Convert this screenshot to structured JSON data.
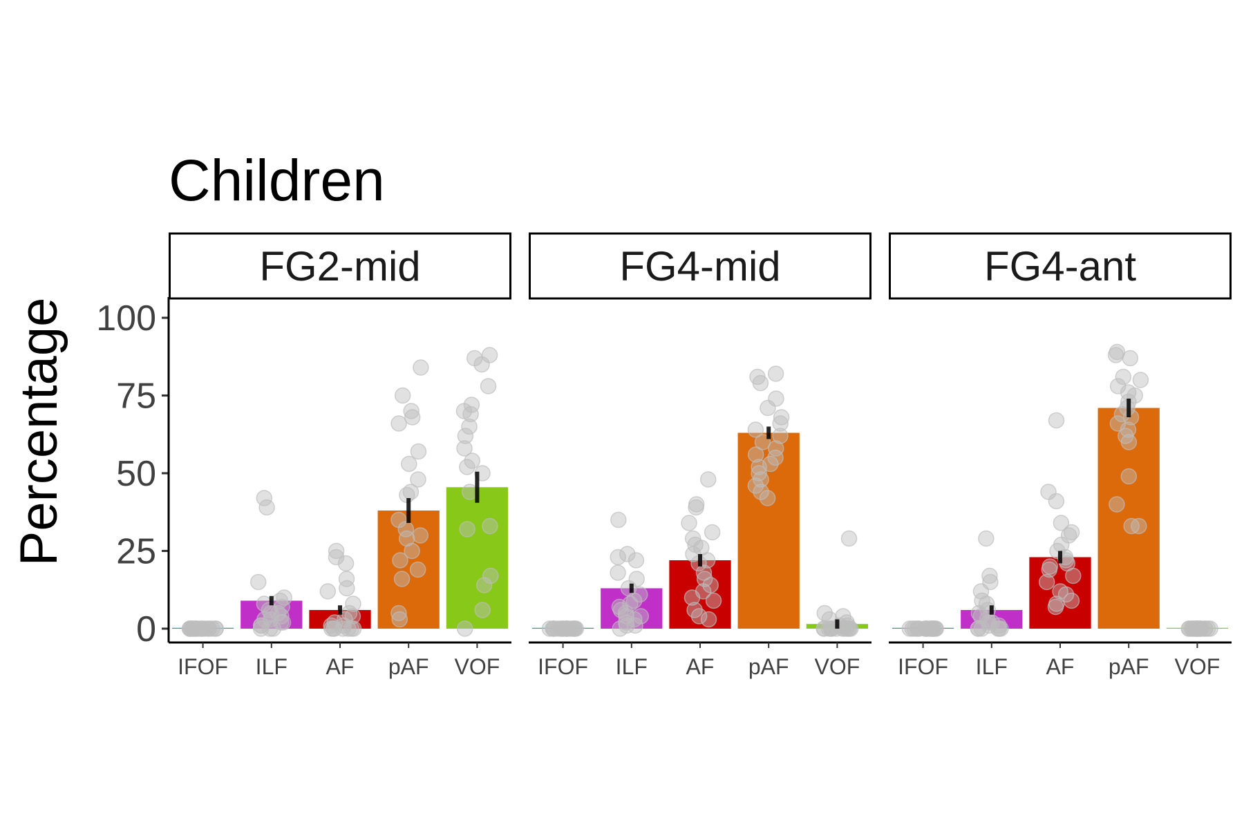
{
  "chart_data": {
    "type": "bar",
    "title": "Children",
    "ylabel": "Percentage",
    "xlabel": "",
    "ylim": [
      -5,
      105
    ],
    "yticks": [
      0,
      25,
      50,
      75,
      100
    ],
    "categories": [
      "IFOF",
      "ILF",
      "AF",
      "pAF",
      "VOF"
    ],
    "colors": {
      "IFOF": "#1f9e9e",
      "ILF": "#c030c8",
      "AF": "#c80000",
      "pAF": "#dc6a0a",
      "VOF": "#88c818"
    },
    "point_color": "#bdbdbd",
    "errorbar_color": "#000000",
    "facets": [
      {
        "name": "FG2-mid",
        "values": [
          0,
          9,
          6,
          38,
          45.5
        ],
        "errors": [
          0,
          1.5,
          1.5,
          4,
          5
        ],
        "points": [
          [
            0,
            0,
            0,
            0,
            0,
            0,
            0,
            0,
            0,
            0,
            0,
            0,
            0,
            0,
            0,
            0,
            0,
            0,
            0,
            0
          ],
          [
            42,
            39,
            15,
            10,
            9,
            8,
            7,
            6,
            5,
            5,
            4,
            3,
            3,
            2,
            2,
            1,
            1,
            0,
            0,
            0
          ],
          [
            25,
            23,
            21,
            16,
            13,
            12,
            8,
            5,
            4,
            3,
            2,
            1,
            1,
            0,
            0,
            0,
            0,
            0,
            0,
            0
          ],
          [
            84,
            75,
            70,
            68,
            66,
            57,
            53,
            48,
            44,
            43,
            35,
            32,
            30,
            29,
            25,
            22,
            19,
            16,
            5,
            3
          ],
          [
            88,
            87,
            85,
            78,
            72,
            70,
            69,
            65,
            62,
            58,
            54,
            52,
            50,
            44,
            33,
            32,
            17,
            14,
            6,
            0
          ]
        ]
      },
      {
        "name": "FG4-mid",
        "values": [
          0,
          13,
          22,
          63,
          1.5
        ],
        "errors": [
          0,
          1.5,
          2,
          2,
          1.5
        ],
        "points": [
          [
            0,
            0,
            0,
            0,
            0,
            0,
            0,
            0,
            0,
            0,
            0,
            0,
            0,
            0,
            0,
            0,
            0,
            0,
            0,
            0
          ],
          [
            35,
            24,
            23,
            22,
            18,
            16,
            13,
            11,
            9,
            8,
            7,
            6,
            5,
            4,
            4,
            3,
            2,
            1,
            1,
            0
          ],
          [
            48,
            40,
            39,
            34,
            31,
            29,
            27,
            26,
            24,
            22,
            21,
            18,
            16,
            14,
            12,
            10,
            9,
            6,
            4,
            3
          ],
          [
            82,
            81,
            79,
            74,
            71,
            68,
            66,
            64,
            62,
            60,
            58,
            56,
            55,
            53,
            52,
            50,
            48,
            46,
            44,
            42
          ],
          [
            29,
            5,
            4,
            3,
            2,
            1,
            1,
            0,
            0,
            0,
            0,
            0,
            0,
            0,
            0,
            0,
            0,
            0,
            0,
            0
          ]
        ]
      },
      {
        "name": "FG4-ant",
        "values": [
          0,
          6,
          23,
          71,
          0
        ],
        "errors": [
          0,
          1.5,
          2,
          3,
          0
        ],
        "points": [
          [
            0,
            0,
            0,
            0,
            0,
            0,
            0,
            0,
            0,
            0,
            0,
            0,
            0,
            0,
            0,
            0,
            0,
            0,
            0,
            0
          ],
          [
            29,
            17,
            15,
            12,
            9,
            8,
            6,
            5,
            4,
            3,
            2,
            2,
            1,
            1,
            0,
            0,
            0,
            0,
            0,
            0
          ],
          [
            67,
            44,
            41,
            34,
            31,
            30,
            27,
            25,
            23,
            22,
            21,
            20,
            19,
            17,
            15,
            12,
            11,
            9,
            8,
            7
          ],
          [
            89,
            88,
            87,
            81,
            80,
            78,
            76,
            75,
            73,
            71,
            69,
            68,
            66,
            64,
            62,
            60,
            49,
            40,
            33,
            33
          ],
          [
            0,
            0,
            0,
            0,
            0,
            0,
            0,
            0,
            0,
            0,
            0,
            0,
            0,
            0,
            0,
            0,
            0,
            0,
            0,
            0
          ]
        ]
      }
    ]
  }
}
